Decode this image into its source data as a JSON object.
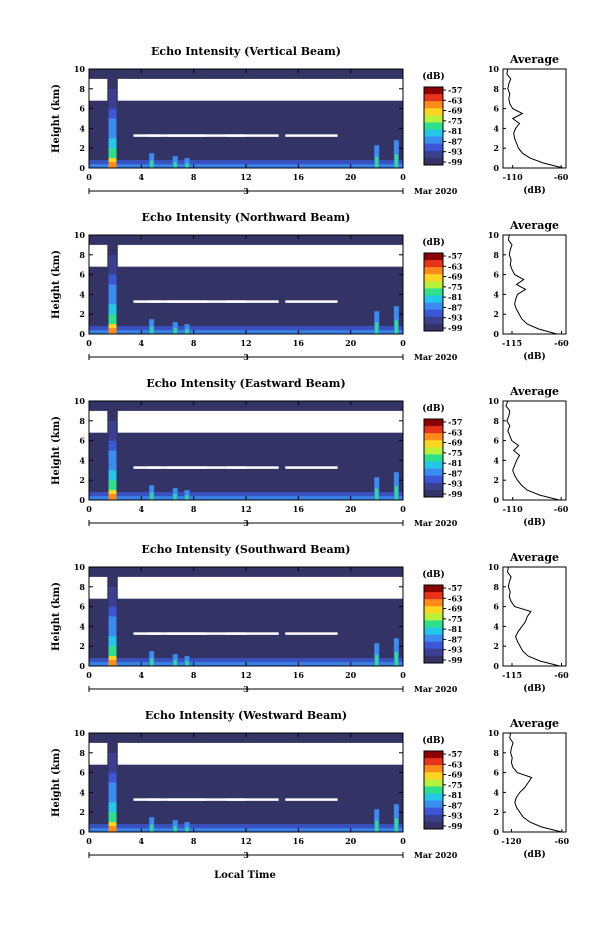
{
  "colorbar": {
    "unit": "(dB)",
    "ticks": [
      "-57",
      "-63",
      "-69",
      "-75",
      "-81",
      "-87",
      "-93",
      "-99"
    ],
    "colors": [
      "#8b0000",
      "#e8331b",
      "#ff8c1a",
      "#ffd61f",
      "#b8f03c",
      "#2fe08a",
      "#23c8e8",
      "#3a8cf0",
      "#3b57d6",
      "#3a3f8f",
      "#333366"
    ]
  },
  "x_axis": {
    "ticks": [
      "0",
      "4",
      "8",
      "12",
      "16",
      "20",
      "0"
    ],
    "date_day": "3",
    "date_suffix": "Mar 2020",
    "label": "Local Time"
  },
  "y_axis": {
    "label": "Height (km)",
    "ticks": [
      "0",
      "2",
      "4",
      "6",
      "8",
      "10"
    ]
  },
  "profile_axis": {
    "title": "Average",
    "xlabel": "(dB)"
  },
  "chart_data": [
    {
      "type": "heatmap",
      "title": "Echo Intensity (Vertical Beam)",
      "x_range_hours": [
        0,
        24
      ],
      "y_range_km": [
        0,
        10
      ],
      "color_range_db": [
        -99,
        -57
      ],
      "profile": {
        "xticks": [
          "-110",
          "-60"
        ],
        "xlim": [
          -120,
          -55
        ],
        "heights": [
          0,
          0.5,
          1,
          1.5,
          2,
          2.5,
          3,
          3.5,
          4,
          4.5,
          5,
          5.5,
          6,
          6.5,
          7,
          7.5,
          8,
          8.5,
          9,
          9.5,
          10
        ],
        "values": [
          -58,
          -78,
          -92,
          -100,
          -104,
          -106,
          -108,
          -109,
          -107,
          -103,
          -110,
          -100,
          -110,
          -113,
          -114,
          -113,
          -115,
          -114,
          -112,
          -116,
          -115
        ]
      }
    },
    {
      "type": "heatmap",
      "title": "Echo Intensity (Northward Beam)",
      "x_range_hours": [
        0,
        24
      ],
      "y_range_km": [
        0,
        10
      ],
      "color_range_db": [
        -99,
        -57
      ],
      "profile": {
        "xticks": [
          "-115",
          "-60"
        ],
        "xlim": [
          -125,
          -55
        ],
        "heights": [
          0,
          0.5,
          1,
          1.5,
          2,
          2.5,
          3,
          3.5,
          4,
          4.5,
          5,
          5.5,
          6,
          6.5,
          7,
          7.5,
          8,
          8.5,
          9,
          9.5,
          10
        ],
        "values": [
          -65,
          -85,
          -98,
          -104,
          -107,
          -110,
          -112,
          -111,
          -109,
          -100,
          -110,
          -102,
          -112,
          -115,
          -117,
          -116,
          -118,
          -117,
          -115,
          -119,
          -118
        ]
      }
    },
    {
      "type": "heatmap",
      "title": "Echo Intensity (Eastward Beam)",
      "x_range_hours": [
        0,
        24
      ],
      "y_range_km": [
        0,
        10
      ],
      "color_range_db": [
        -99,
        -57
      ],
      "profile": {
        "xticks": [
          "-110",
          "-60"
        ],
        "xlim": [
          -120,
          -55
        ],
        "heights": [
          0,
          0.5,
          1,
          1.5,
          2,
          2.5,
          3,
          3.5,
          4,
          4.5,
          5,
          5.5,
          6,
          6.5,
          7,
          7.5,
          8,
          8.5,
          9,
          9.5,
          10
        ],
        "values": [
          -62,
          -82,
          -95,
          -101,
          -105,
          -108,
          -110,
          -108,
          -106,
          -103,
          -109,
          -104,
          -111,
          -113,
          -115,
          -113,
          -116,
          -114,
          -113,
          -117,
          -115
        ]
      }
    },
    {
      "type": "heatmap",
      "title": "Echo Intensity (Southward Beam)",
      "x_range_hours": [
        0,
        24
      ],
      "y_range_km": [
        0,
        10
      ],
      "color_range_db": [
        -99,
        -57
      ],
      "profile": {
        "xticks": [
          "-115",
          "-60"
        ],
        "xlim": [
          -125,
          -55
        ],
        "heights": [
          0,
          0.5,
          1,
          1.5,
          2,
          2.5,
          3,
          3.5,
          4,
          4.5,
          5,
          5.5,
          6,
          6.5,
          7,
          7.5,
          8,
          8.5,
          9,
          9.5,
          10
        ],
        "values": [
          -62,
          -84,
          -97,
          -103,
          -106,
          -109,
          -111,
          -108,
          -104,
          -100,
          -98,
          -94,
          -112,
          -116,
          -118,
          -117,
          -119,
          -118,
          -116,
          -120,
          -119
        ]
      }
    },
    {
      "type": "heatmap",
      "title": "Echo Intensity (Westward Beam)",
      "x_range_hours": [
        0,
        24
      ],
      "y_range_km": [
        0,
        10
      ],
      "color_range_db": [
        -99,
        -57
      ],
      "profile": {
        "xticks": [
          "-120",
          "-60"
        ],
        "xlim": [
          -130,
          -55
        ],
        "heights": [
          0,
          0.5,
          1,
          1.5,
          2,
          2.5,
          3,
          3.5,
          4,
          4.5,
          5,
          5.5,
          6,
          6.5,
          7,
          7.5,
          8,
          8.5,
          9,
          9.5,
          10
        ],
        "values": [
          -60,
          -84,
          -98,
          -106,
          -110,
          -114,
          -116,
          -114,
          -110,
          -104,
          -100,
          -96,
          -113,
          -118,
          -120,
          -119,
          -121,
          -120,
          -118,
          -122,
          -121
        ]
      }
    }
  ]
}
